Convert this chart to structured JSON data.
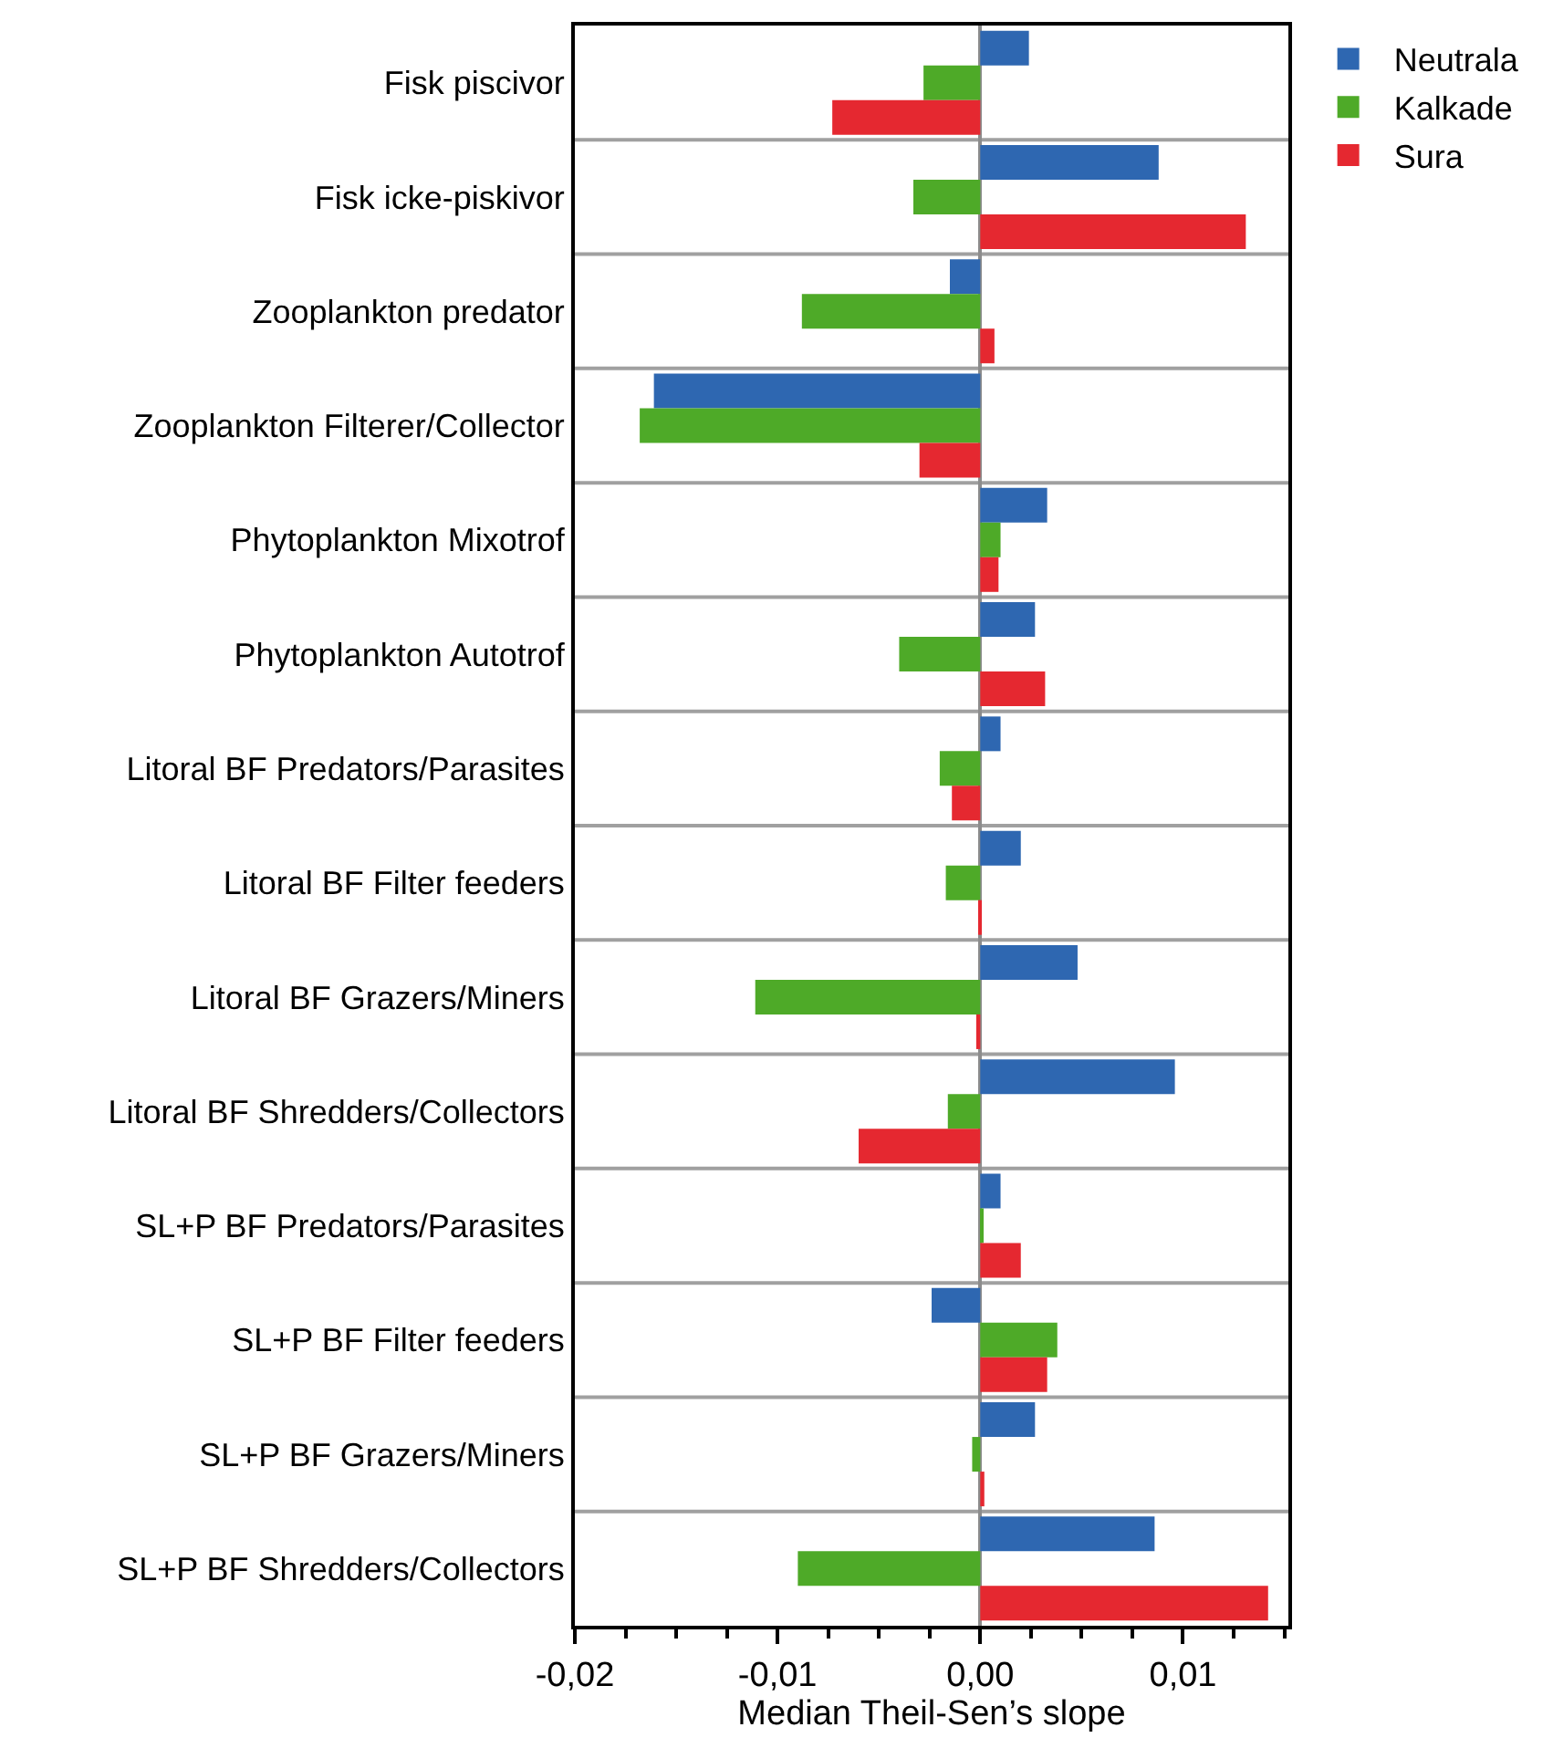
{
  "chart_data": {
    "type": "bar",
    "orientation": "horizontal",
    "xlabel": "Median Theil-Sen’s slope",
    "categories": [
      "Fisk piscivor",
      "Fisk icke-piskivor",
      "Zooplankton predator",
      "Zooplankton Filterer/Collector",
      "Phytoplankton Mixotrof",
      "Phytoplankton Autotrof",
      "Litoral BF Predators/Parasites",
      "Litoral BF Filter feeders",
      "Litoral BF Grazers/Miners",
      "Litoral BF Shredders/Collectors",
      "SL+P BF Predators/Parasites",
      "SL+P BF Filter feeders",
      "SL+P BF Grazers/Miners",
      "SL+P BF Shredders/Collectors"
    ],
    "series": [
      {
        "name": "Neutrala",
        "color": "#2e67b1",
        "values": [
          0.0024,
          0.0088,
          -0.0015,
          -0.0161,
          0.0033,
          0.0027,
          0.001,
          0.002,
          0.0048,
          0.0096,
          0.001,
          -0.0024,
          0.0027,
          0.0086
        ]
      },
      {
        "name": "Kalkade",
        "color": "#4eaa28",
        "values": [
          -0.0028,
          -0.0033,
          -0.0088,
          -0.0168,
          0.001,
          -0.004,
          -0.002,
          -0.0017,
          -0.0111,
          -0.0016,
          0.0001,
          0.0038,
          -0.0004,
          -0.009
        ]
      },
      {
        "name": "Sura",
        "color": "#e52830",
        "values": [
          -0.0073,
          0.0131,
          0.0007,
          -0.003,
          0.0009,
          0.0032,
          -0.0014,
          -0.0001,
          -0.0002,
          -0.006,
          0.002,
          0.0033,
          0.0002,
          0.0142
        ]
      }
    ],
    "xlim": [
      -0.02,
      0.0152
    ],
    "xticks": [
      {
        "value": -0.02,
        "label": "-0,02"
      },
      {
        "value": -0.01,
        "label": "-0,01"
      },
      {
        "value": 0.0,
        "label": "0,00"
      },
      {
        "value": 0.01,
        "label": "0,01"
      }
    ],
    "grid": "y",
    "legend": "top right"
  }
}
